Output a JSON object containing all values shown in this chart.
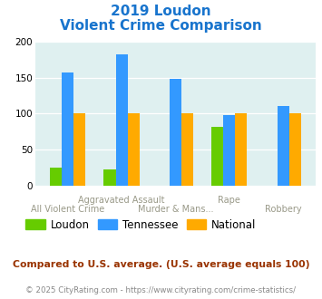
{
  "title_line1": "2019 Loudon",
  "title_line2": "Violent Crime Comparison",
  "title_color": "#1874CD",
  "cat_labels_top": [
    "",
    "Aggravated Assault",
    "",
    "Rape",
    ""
  ],
  "cat_labels_bottom": [
    "All Violent Crime",
    "",
    "Murder & Mans...",
    "",
    "Robbery"
  ],
  "loudon": [
    25,
    22,
    0,
    81,
    0
  ],
  "tennessee": [
    157,
    183,
    148,
    98,
    110
  ],
  "national": [
    100,
    100,
    100,
    100,
    100
  ],
  "loudon_color": "#66CC00",
  "tennessee_color": "#3399FF",
  "national_color": "#FFAA00",
  "ylim": [
    0,
    200
  ],
  "yticks": [
    0,
    50,
    100,
    150,
    200
  ],
  "plot_bg_color": "#DFF0F0",
  "grid_color": "#FFFFFF",
  "label_color": "#999988",
  "footnote": "Compared to U.S. average. (U.S. average equals 100)",
  "footnote_color": "#993300",
  "copyright": "© 2025 CityRating.com - https://www.cityrating.com/crime-statistics/",
  "copyright_color": "#888888",
  "bar_width": 0.22
}
